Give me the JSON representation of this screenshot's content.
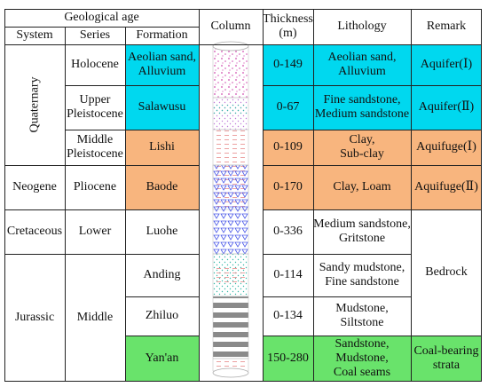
{
  "headers": {
    "geological_age": "Geological age",
    "system": "System",
    "series": "Series",
    "formation": "Formation",
    "column": "Column",
    "thickness": "Thickness\n(m)",
    "lithology": "Lithology",
    "remark": "Remark"
  },
  "systems": {
    "quaternary": "Quaternary",
    "neogene": "Neogene",
    "cretaceous": "Cretaceous",
    "jurassic": "Jurassic"
  },
  "series": {
    "holocene": "Holocene",
    "upper_pleistocene": "Upper\nPleistocene",
    "middle_pleistocene": "Middle\nPleistocene",
    "pliocene": "Pliocene",
    "lower": "Lower",
    "middle": "Middle"
  },
  "rows": [
    {
      "formation": "Aeolian sand,\nAlluvium",
      "thickness": "0-149",
      "lithology": "Aeolian sand,\nAlluvium",
      "remark": "Aquifer(Ⅰ)"
    },
    {
      "formation": "Salawusu",
      "thickness": "0-67",
      "lithology": "Fine sandstone,\nMedium sandstone",
      "remark": "Aquifer(Ⅱ)"
    },
    {
      "formation": "Lishi",
      "thickness": "0-109",
      "lithology": "Clay,\nSub-clay",
      "remark": "Aquifuge(Ⅰ)"
    },
    {
      "formation": "Baode",
      "thickness": "0-170",
      "lithology": "Clay, Loam",
      "remark": "Aquifuge(Ⅱ)"
    },
    {
      "formation": "Luohe",
      "thickness": "0-336",
      "lithology": "Medium sandstone,\nGritstone",
      "remark": ""
    },
    {
      "formation": "Anding",
      "thickness": "0-114",
      "lithology": "Sandy mudstone,\nFine sandstone",
      "remark": ""
    },
    {
      "formation": "Zhiluo",
      "thickness": "0-134",
      "lithology": "Mudstone,\nSiltstone",
      "remark": ""
    },
    {
      "formation": "Yan'an",
      "thickness": "150-280",
      "lithology": "Sandstone,\nMudstone,\nCoal seams",
      "remark": "Coal-bearing\nstrata"
    }
  ],
  "bedrock_remark": "Bedrock",
  "colors": {
    "aquifer": "#00d8ef",
    "aquifuge": "#f8b57e",
    "coal": "#69e36b",
    "grid": "#222222"
  }
}
